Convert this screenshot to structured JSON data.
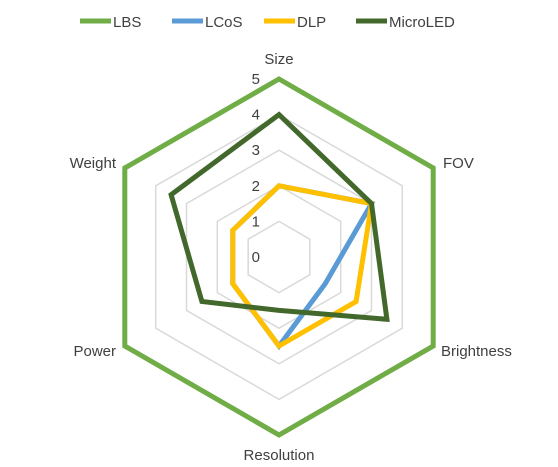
{
  "chart_data": {
    "type": "radar",
    "categories": [
      "Size",
      "FOV",
      "Brightness",
      "Resolution",
      "Power",
      "Weight"
    ],
    "rlim": [
      0,
      5
    ],
    "ticks": [
      "0",
      "1",
      "2",
      "3",
      "4",
      "5"
    ],
    "grid": true,
    "legend_position": "top",
    "series": [
      {
        "name": "LBS",
        "color": "#70AD47",
        "values": [
          5,
          5,
          5,
          5,
          5,
          5
        ]
      },
      {
        "name": "LCoS",
        "color": "#5B9BD5",
        "values": [
          2,
          3,
          1.5,
          2.5,
          1.5,
          1.5
        ]
      },
      {
        "name": "DLP",
        "color": "#FFC000",
        "values": [
          2,
          3,
          2.5,
          2.5,
          1.5,
          1.5
        ]
      },
      {
        "name": "MicroLED",
        "color": "#43682B",
        "values": [
          4,
          3,
          3.5,
          1.5,
          2.5,
          3.5
        ]
      }
    ]
  }
}
